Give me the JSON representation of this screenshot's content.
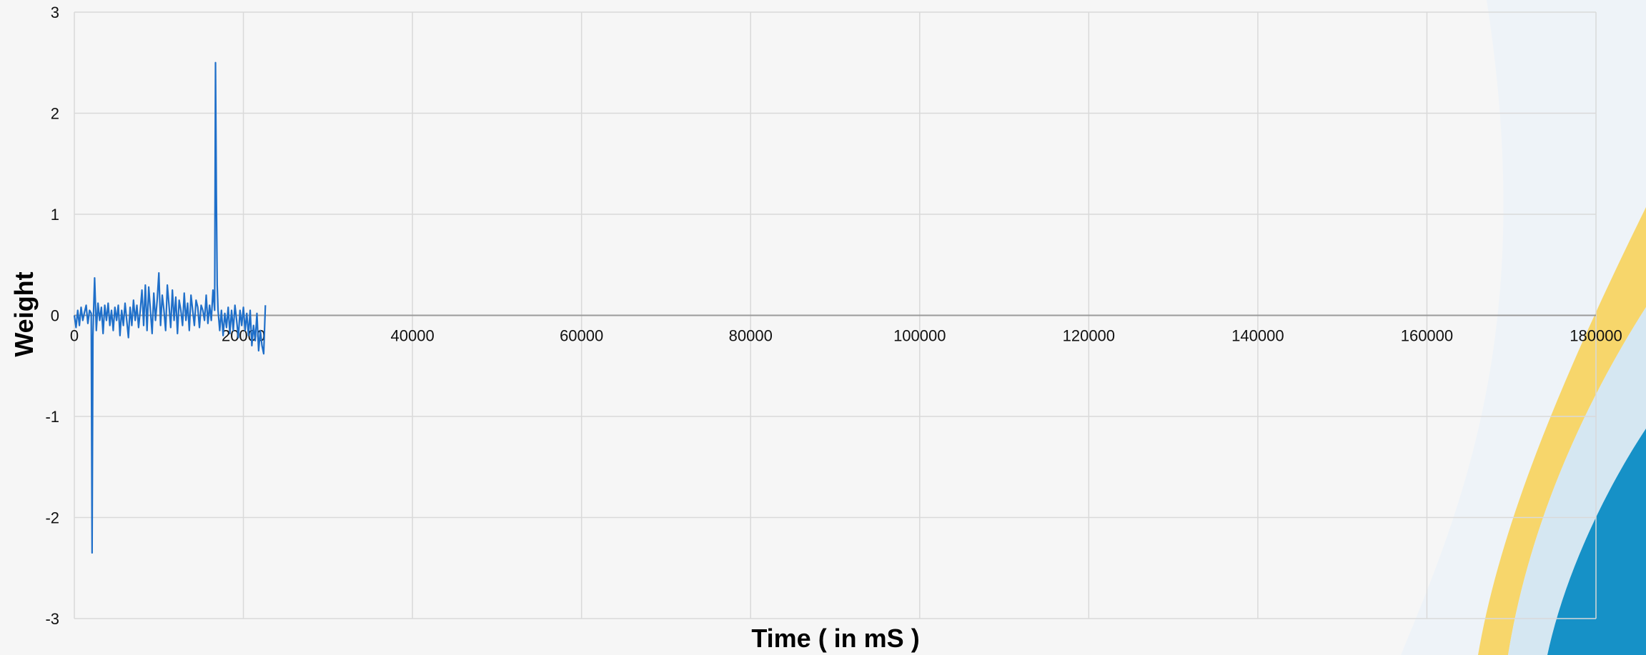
{
  "chart_data": {
    "type": "line",
    "title": "",
    "xlabel": "Time ( in mS )",
    "ylabel": "Weight",
    "xlim": [
      0,
      180000
    ],
    "ylim": [
      -3,
      3
    ],
    "x_ticks": [
      0,
      20000,
      40000,
      60000,
      80000,
      100000,
      120000,
      140000,
      160000,
      180000
    ],
    "y_ticks": [
      -3,
      -2,
      -1,
      0,
      1,
      2,
      3
    ],
    "x_tick_labels": [
      "0",
      "20000",
      "40000",
      "60000",
      "80000",
      "100000",
      "120000",
      "140000",
      "160000",
      "180000"
    ],
    "y_tick_labels": [
      "-3",
      "-2",
      "-1",
      "0",
      "1",
      "2",
      "3"
    ],
    "grid": true,
    "legend": "none",
    "series": [
      {
        "color": "#1f6fc9",
        "x": [
          0,
          200,
          400,
          600,
          800,
          1000,
          1200,
          1400,
          1600,
          1800,
          2000,
          2100,
          2200,
          2300,
          2400,
          2600,
          2800,
          3000,
          3200,
          3400,
          3600,
          3800,
          4000,
          4200,
          4400,
          4600,
          4800,
          5000,
          5200,
          5400,
          5600,
          5800,
          6000,
          6200,
          6400,
          6600,
          6800,
          7000,
          7200,
          7400,
          7600,
          7800,
          8000,
          8200,
          8400,
          8600,
          8800,
          9000,
          9200,
          9400,
          9600,
          9800,
          10000,
          10200,
          10400,
          10600,
          10800,
          11000,
          11200,
          11400,
          11600,
          11800,
          12000,
          12200,
          12400,
          12600,
          12800,
          13000,
          13200,
          13400,
          13600,
          13800,
          14000,
          14200,
          14400,
          14600,
          14800,
          15000,
          15200,
          15400,
          15600,
          15800,
          16000,
          16200,
          16400,
          16600,
          16700,
          16800,
          16900,
          17000,
          17200,
          17400,
          17600,
          17800,
          18000,
          18200,
          18400,
          18600,
          18800,
          19000,
          19200,
          19400,
          19600,
          19800,
          20000,
          20200,
          20400,
          20600,
          20800,
          21000,
          21200,
          21400,
          21600,
          21800,
          22000,
          22200,
          22400,
          22600
        ],
        "y": [
          0,
          -0.12,
          0.05,
          -0.1,
          0.08,
          -0.05,
          0.03,
          0.1,
          -0.08,
          0.05,
          0.02,
          -2.35,
          -0.2,
          0.1,
          0.37,
          -0.15,
          0.12,
          -0.05,
          0.08,
          -0.18,
          0.1,
          -0.05,
          0.12,
          -0.1,
          0.05,
          -0.15,
          0.08,
          -0.05,
          0.1,
          -0.2,
          0.05,
          -0.1,
          0.12,
          -0.05,
          -0.22,
          0.08,
          -0.1,
          0.15,
          -0.05,
          0.1,
          -0.12,
          0.05,
          0.25,
          -0.1,
          0.3,
          -0.15,
          0.28,
          0.05,
          -0.18,
          0.22,
          -0.05,
          0.15,
          0.42,
          -0.1,
          0.2,
          0.05,
          -0.15,
          0.3,
          0.1,
          -0.12,
          0.25,
          -0.05,
          0.18,
          -0.18,
          0.15,
          0.05,
          -0.1,
          0.22,
          -0.05,
          0.12,
          -0.15,
          0.2,
          0.05,
          -0.1,
          0.15,
          0.08,
          -0.12,
          0.1,
          0.05,
          -0.05,
          0.2,
          -0.08,
          0.1,
          -0.05,
          0.25,
          0.05,
          2.5,
          1.2,
          0.3,
          0.05,
          -0.15,
          0.05,
          -0.2,
          0.02,
          -0.12,
          0.08,
          -0.18,
          0.05,
          -0.15,
          0.1,
          -0.05,
          -0.22,
          0.05,
          -0.1,
          0.08,
          -0.15,
          0.02,
          -0.2,
          0.05,
          -0.3,
          -0.1,
          -0.25,
          0.02,
          -0.35,
          -0.15,
          -0.3,
          -0.38,
          0.1
        ]
      }
    ]
  },
  "colors": {
    "line": "#1f6fc9",
    "grid": "#d9d9d9",
    "zero_axis": "#9a9a9a",
    "background": "#f6f6f6",
    "accent_yellow": "#f7d66b",
    "accent_blue": "#1691c7"
  }
}
